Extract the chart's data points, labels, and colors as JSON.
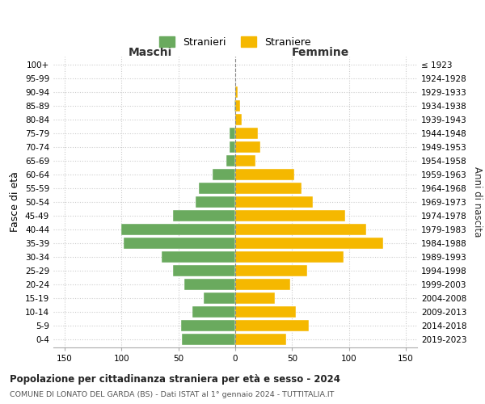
{
  "age_groups": [
    "0-4",
    "5-9",
    "10-14",
    "15-19",
    "20-24",
    "25-29",
    "30-34",
    "35-39",
    "40-44",
    "45-49",
    "50-54",
    "55-59",
    "60-64",
    "65-69",
    "70-74",
    "75-79",
    "80-84",
    "85-89",
    "90-94",
    "95-99",
    "100+"
  ],
  "birth_years": [
    "2019-2023",
    "2014-2018",
    "2009-2013",
    "2004-2008",
    "1999-2003",
    "1994-1998",
    "1989-1993",
    "1984-1988",
    "1979-1983",
    "1974-1978",
    "1969-1973",
    "1964-1968",
    "1959-1963",
    "1954-1958",
    "1949-1953",
    "1944-1948",
    "1939-1943",
    "1934-1938",
    "1929-1933",
    "1924-1928",
    "≤ 1923"
  ],
  "males": [
    47,
    48,
    38,
    28,
    45,
    55,
    65,
    98,
    100,
    55,
    35,
    32,
    20,
    8,
    5,
    5,
    0,
    1,
    0,
    0,
    0
  ],
  "females": [
    45,
    65,
    53,
    35,
    48,
    63,
    95,
    130,
    115,
    97,
    68,
    58,
    52,
    18,
    22,
    20,
    6,
    4,
    2,
    0,
    0
  ],
  "male_color": "#6aaa5e",
  "female_color": "#f5b800",
  "background_color": "#ffffff",
  "grid_color": "#cccccc",
  "dashed_line_color": "#888888",
  "title": "Popolazione per cittadinanza straniera per età e sesso - 2024",
  "subtitle": "COMUNE DI LONATO DEL GARDA (BS) - Dati ISTAT al 1° gennaio 2024 - TUTTITALIA.IT",
  "male_label": "Stranieri",
  "female_label": "Straniere",
  "male_header": "Maschi",
  "female_header": "Femmine",
  "ylabel": "Fasce di età",
  "right_ylabel": "Anni di nascita",
  "xlim": 160,
  "bar_height": 0.8
}
